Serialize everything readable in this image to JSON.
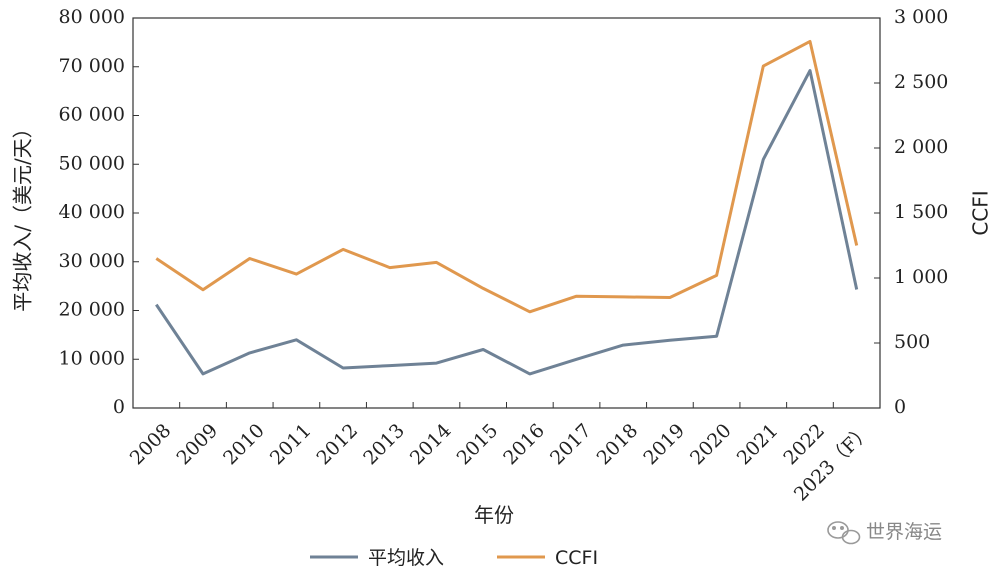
{
  "chart_data": {
    "type": "line",
    "categories": [
      "2008",
      "2009",
      "2010",
      "2011",
      "2012",
      "2013",
      "2014",
      "2015",
      "2016",
      "2017",
      "2018",
      "2019",
      "2020",
      "2021",
      "2022",
      "2023（F）"
    ],
    "series": [
      {
        "name": "平均收入",
        "axis": "left",
        "color": "#6f8296",
        "values": [
          21200,
          7000,
          11300,
          14000,
          8200,
          8700,
          9200,
          12000,
          7000,
          10000,
          12900,
          13900,
          14700,
          51000,
          69200,
          24300
        ]
      },
      {
        "name": "CCFI",
        "axis": "right",
        "color": "#e0984e",
        "values": [
          1150,
          910,
          1150,
          1030,
          1220,
          1080,
          1120,
          920,
          740,
          860,
          855,
          850,
          1020,
          2630,
          2820,
          1250
        ]
      }
    ],
    "xlabel": "年份",
    "ylabel": "平均收入/（美元/天）",
    "y2label": "CCFI",
    "ylim": [
      0,
      80000
    ],
    "y2lim": [
      0,
      3000
    ],
    "yticks": [
      0,
      10000,
      20000,
      30000,
      40000,
      50000,
      60000,
      70000,
      80000
    ],
    "y2ticks": [
      0,
      500,
      1000,
      1500,
      2000,
      2500,
      3000
    ],
    "grid": false,
    "legend": "bottom-center"
  },
  "watermark": "世界海运"
}
